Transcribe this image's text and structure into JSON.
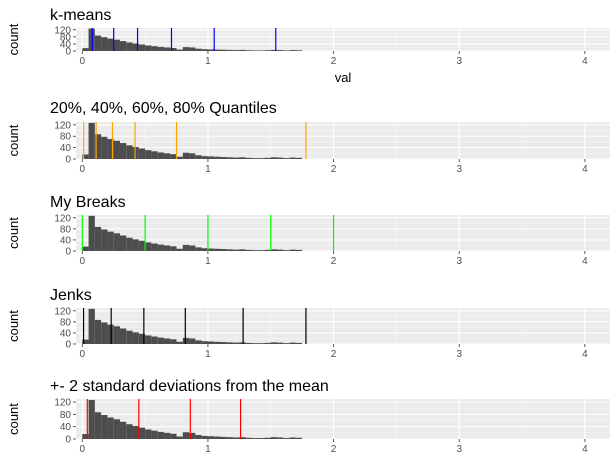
{
  "chart_data": [
    {
      "type": "bar",
      "title": "k-means",
      "xlabel": "val",
      "ylabel": "count",
      "xlim": [
        -0.05,
        4.2
      ],
      "ylim": [
        0,
        130
      ],
      "x_ticks": [
        0,
        1,
        2,
        3,
        4
      ],
      "y_ticks": [
        0,
        40,
        80,
        120
      ],
      "grid": true,
      "histogram": {
        "bin_starts": [
          0.0,
          0.05,
          0.1,
          0.15,
          0.2,
          0.25,
          0.3,
          0.35,
          0.4,
          0.45,
          0.5,
          0.55,
          0.6,
          0.65,
          0.7,
          0.75,
          0.8,
          0.85,
          0.9,
          0.95,
          1.0,
          1.05,
          1.1,
          1.15,
          1.2,
          1.25,
          1.3,
          1.35,
          1.4,
          1.45,
          1.5,
          1.55,
          1.6,
          1.65,
          1.7
        ],
        "bin_width": 0.05,
        "counts": [
          16,
          127,
          87,
          78,
          70,
          64,
          56,
          48,
          42,
          37,
          31,
          27,
          23,
          20,
          17,
          8,
          22,
          20,
          13,
          10,
          9,
          8,
          7,
          6,
          5,
          6,
          4,
          3,
          3,
          4,
          6,
          5,
          3,
          5,
          4
        ]
      },
      "break_color": "#0000ff",
      "breaks": [
        0.08,
        0.25,
        0.44,
        0.71,
        1.05,
        1.54
      ]
    },
    {
      "type": "bar",
      "title": "20%, 40%, 60%, 80% Quantiles",
      "xlabel": "",
      "ylabel": "count",
      "xlim": [
        -0.05,
        4.2
      ],
      "ylim": [
        0,
        130
      ],
      "x_ticks": [
        0,
        1,
        2,
        3,
        4
      ],
      "y_ticks": [
        0,
        40,
        80,
        120
      ],
      "grid": true,
      "histogram": "same as k-means",
      "break_color": "#ffa500",
      "breaks": [
        0.01,
        0.11,
        0.24,
        0.42,
        0.75,
        1.78
      ]
    },
    {
      "type": "bar",
      "title": "My Breaks",
      "xlabel": "",
      "ylabel": "count",
      "xlim": [
        -0.05,
        4.2
      ],
      "ylim": [
        0,
        130
      ],
      "x_ticks": [
        0,
        1,
        2,
        3,
        4
      ],
      "y_ticks": [
        0,
        40,
        80,
        120
      ],
      "grid": true,
      "histogram": "same as k-means",
      "break_color": "#00ff00",
      "breaks": [
        0.0,
        0.5,
        1.0,
        1.5,
        2.0
      ]
    },
    {
      "type": "bar",
      "title": "Jenks",
      "xlabel": "",
      "ylabel": "count",
      "xlim": [
        -0.05,
        4.2
      ],
      "ylim": [
        0,
        130
      ],
      "x_ticks": [
        0,
        1,
        2,
        3,
        4
      ],
      "y_ticks": [
        0,
        40,
        80,
        120
      ],
      "grid": true,
      "histogram": "same as k-means",
      "break_color": "#000000",
      "breaks": [
        0.01,
        0.23,
        0.49,
        0.82,
        1.28,
        1.78
      ]
    },
    {
      "type": "bar",
      "title": "+- 2 standard deviations from the mean",
      "xlabel": "",
      "ylabel": "count",
      "xlim": [
        -0.05,
        4.2
      ],
      "ylim": [
        0,
        130
      ],
      "x_ticks": [
        0,
        1,
        2,
        3,
        4
      ],
      "y_ticks": [
        0,
        40,
        80,
        120
      ],
      "grid": true,
      "histogram": "same as k-means",
      "break_color": "#ff0000",
      "breaks": [
        0.04,
        0.45,
        0.86,
        1.26
      ]
    }
  ]
}
